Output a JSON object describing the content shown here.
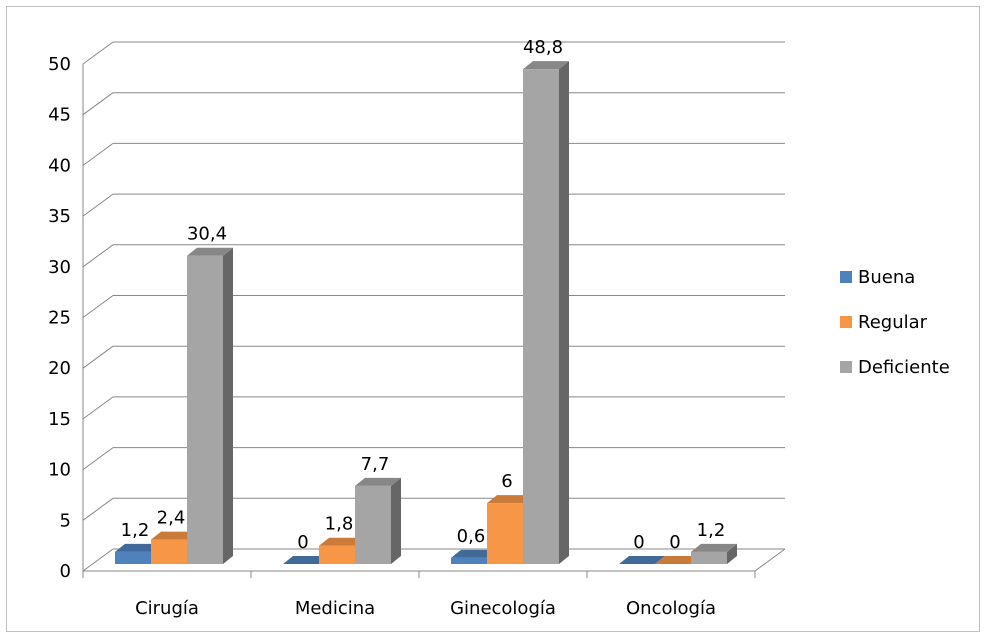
{
  "chart_data": {
    "type": "bar",
    "categories": [
      "Cirugía",
      "Medicina",
      "Ginecología",
      "Oncología"
    ],
    "series": [
      {
        "name": "Buena",
        "values": [
          1.2,
          0,
          0.6,
          0
        ],
        "labels": [
          "1,2",
          "0",
          "0,6",
          "0"
        ],
        "color": "#4f81bd"
      },
      {
        "name": "Regular",
        "values": [
          2.4,
          1.8,
          6,
          0
        ],
        "labels": [
          "2,4",
          "1,8",
          "6",
          "0"
        ],
        "color": "#f79646"
      },
      {
        "name": "Deficiente",
        "values": [
          30.4,
          7.7,
          48.8,
          1.2
        ],
        "labels": [
          "30,4",
          "7,7",
          "48,8",
          "1,2"
        ],
        "color": "#a5a5a5"
      }
    ],
    "yticks": [
      "0",
      "5",
      "10",
      "15",
      "20",
      "25",
      "30",
      "35",
      "40",
      "45",
      "50"
    ],
    "ylim": [
      0,
      50
    ],
    "grid": true,
    "legend": "right",
    "style": "3d-clustered-column"
  }
}
